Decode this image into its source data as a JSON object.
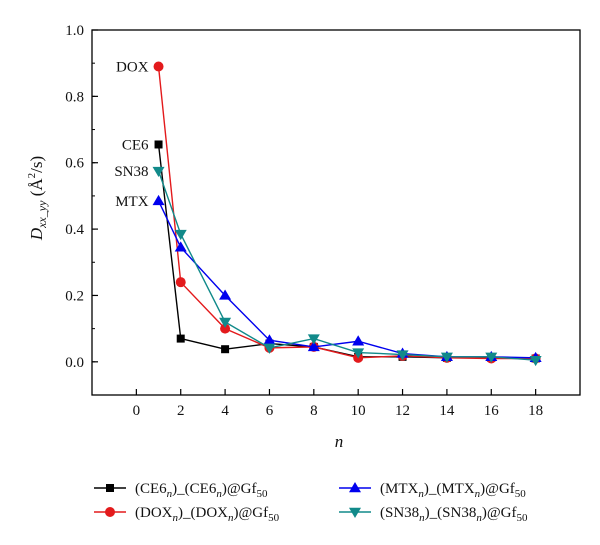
{
  "chart_data": {
    "type": "line",
    "xlabel": "n",
    "ylabel": "D_{xx_yy} (Å²/s)",
    "xlim": [
      -2,
      20
    ],
    "ylim": [
      -0.1,
      1.0
    ],
    "x_ticks": [
      0,
      2,
      4,
      6,
      8,
      10,
      12,
      14,
      16,
      18
    ],
    "y_ticks": [
      0.0,
      0.2,
      0.4,
      0.6,
      0.8,
      1.0
    ],
    "x_tick_labels": [
      "0",
      "2",
      "4",
      "6",
      "8",
      "10",
      "12",
      "14",
      "16",
      "18"
    ],
    "y_tick_labels": [
      "0.0",
      "0.2",
      "0.4",
      "0.6",
      "0.8",
      "1.0"
    ],
    "legend_position": "bottom",
    "series": [
      {
        "name": "(CE6n)_(CE6n)@Gf50",
        "color": "#000000",
        "marker": "square",
        "x": [
          1,
          2,
          4,
          6,
          8,
          10,
          12,
          14,
          16,
          18
        ],
        "y": [
          0.655,
          0.07,
          0.038,
          0.055,
          0.045,
          0.015,
          0.015,
          0.012,
          0.012,
          0.01
        ]
      },
      {
        "name": "(DOXn)_(DOXn)@Gf50",
        "color": "#e31a1c",
        "marker": "circle",
        "x": [
          1,
          2,
          4,
          6,
          8,
          10,
          12,
          14,
          16,
          18
        ],
        "y": [
          0.89,
          0.24,
          0.1,
          0.042,
          0.045,
          0.012,
          0.018,
          0.012,
          0.01,
          0.01
        ]
      },
      {
        "name": "(MTXn)_(MTXn)@Gf50",
        "color": "#0000ee",
        "marker": "triangle-up",
        "x": [
          1,
          2,
          4,
          6,
          8,
          10,
          12,
          14,
          16,
          18
        ],
        "y": [
          0.485,
          0.345,
          0.2,
          0.065,
          0.045,
          0.062,
          0.025,
          0.015,
          0.015,
          0.012
        ]
      },
      {
        "name": "(SN38n)_(SN38n)@Gf50",
        "color": "#118a8a",
        "marker": "triangle-down",
        "x": [
          1,
          2,
          4,
          6,
          8,
          10,
          12,
          14,
          16,
          18
        ],
        "y": [
          0.575,
          0.385,
          0.12,
          0.042,
          0.07,
          0.028,
          0.022,
          0.015,
          0.015,
          0.005
        ]
      }
    ],
    "annotations": [
      {
        "text": "DOX",
        "series": 1
      },
      {
        "text": "CE6",
        "series": 0
      },
      {
        "text": "SN38",
        "series": 3
      },
      {
        "text": "MTX",
        "series": 2
      }
    ],
    "legend": [
      {
        "main": "(CE6",
        "sub1": "n",
        "mid": ")_(CE6",
        "sub2": "n",
        "tail": ")@Gf",
        "sub3": "50"
      },
      {
        "main": "(DOX",
        "sub1": "n",
        "mid": ")_(DOX",
        "sub2": "n",
        "tail": ")@Gf",
        "sub3": "50"
      },
      {
        "main": "(MTX",
        "sub1": "n",
        "mid": ")_(MTX",
        "sub2": "n",
        "tail": ")@Gf",
        "sub3": "50"
      },
      {
        "main": "(SN38",
        "sub1": "n",
        "mid": ")_(SN38",
        "sub2": "n",
        "tail": ")@Gf",
        "sub3": "50"
      }
    ],
    "axis_title": {
      "y_main": "D",
      "y_sub": "xx_yy",
      "y_rest": " (Å",
      "y_sup": "2",
      "y_end": "/s)",
      "x": "n"
    }
  }
}
